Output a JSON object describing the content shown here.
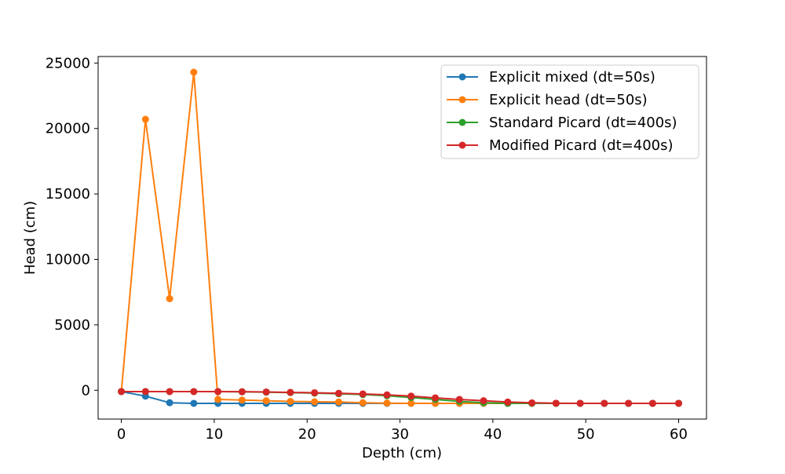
{
  "chart_data": {
    "type": "line",
    "title": "",
    "xlabel": "Depth (cm)",
    "ylabel": "Head (cm)",
    "xlim": [
      -2.5,
      63
    ],
    "ylim": [
      -2200,
      25500
    ],
    "xticks": [
      0,
      10,
      20,
      30,
      40,
      50,
      60
    ],
    "yticks": [
      0,
      5000,
      10000,
      15000,
      20000,
      25000
    ],
    "x": [
      0,
      2.6,
      5.2,
      7.8,
      10.4,
      13,
      15.6,
      18.2,
      20.8,
      23.4,
      26,
      28.6,
      31.2,
      33.8,
      36.4,
      39,
      41.6,
      44.2,
      46.8,
      49.4,
      52,
      54.6,
      57.2,
      60
    ],
    "grid": false,
    "legend_position": "top-right",
    "series": [
      {
        "name": "Explicit mixed (dt=50s)",
        "color": "#1f77b4",
        "values": [
          -100,
          -450,
          -950,
          -1000,
          -1000,
          -1000,
          -1000,
          -1000,
          -1000,
          -1000,
          -1000,
          -1000,
          -1000,
          -1000,
          -1000,
          -1000,
          -1000,
          -1000,
          -1000,
          -1000,
          -1000,
          -1000,
          -1000,
          -1000
        ]
      },
      {
        "name": "Explicit head (dt=50s)",
        "color": "#ff7f0e",
        "values": [
          -100,
          20700,
          7000,
          24300,
          -700,
          -750,
          -800,
          -850,
          -880,
          -900,
          -950,
          -980,
          -1000,
          -1000,
          -1000,
          -1000,
          -1000,
          -1000,
          -1000,
          -1000,
          -1000,
          -1000,
          -1000,
          -1000
        ]
      },
      {
        "name": "Standard Picard (dt=400s)",
        "color": "#2ca02c",
        "values": [
          -100,
          -100,
          -100,
          -100,
          -100,
          -120,
          -150,
          -180,
          -220,
          -270,
          -330,
          -420,
          -550,
          -700,
          -850,
          -950,
          -1000,
          -1000,
          -1000,
          -1000,
          -1000,
          -1000,
          -1000,
          -1000
        ]
      },
      {
        "name": "Modified Picard (dt=400s)",
        "color": "#d62728",
        "values": [
          -100,
          -100,
          -100,
          -100,
          -100,
          -110,
          -130,
          -160,
          -190,
          -230,
          -280,
          -350,
          -450,
          -580,
          -700,
          -800,
          -900,
          -960,
          -990,
          -1000,
          -1000,
          -1000,
          -1000,
          -1000
        ]
      }
    ]
  }
}
